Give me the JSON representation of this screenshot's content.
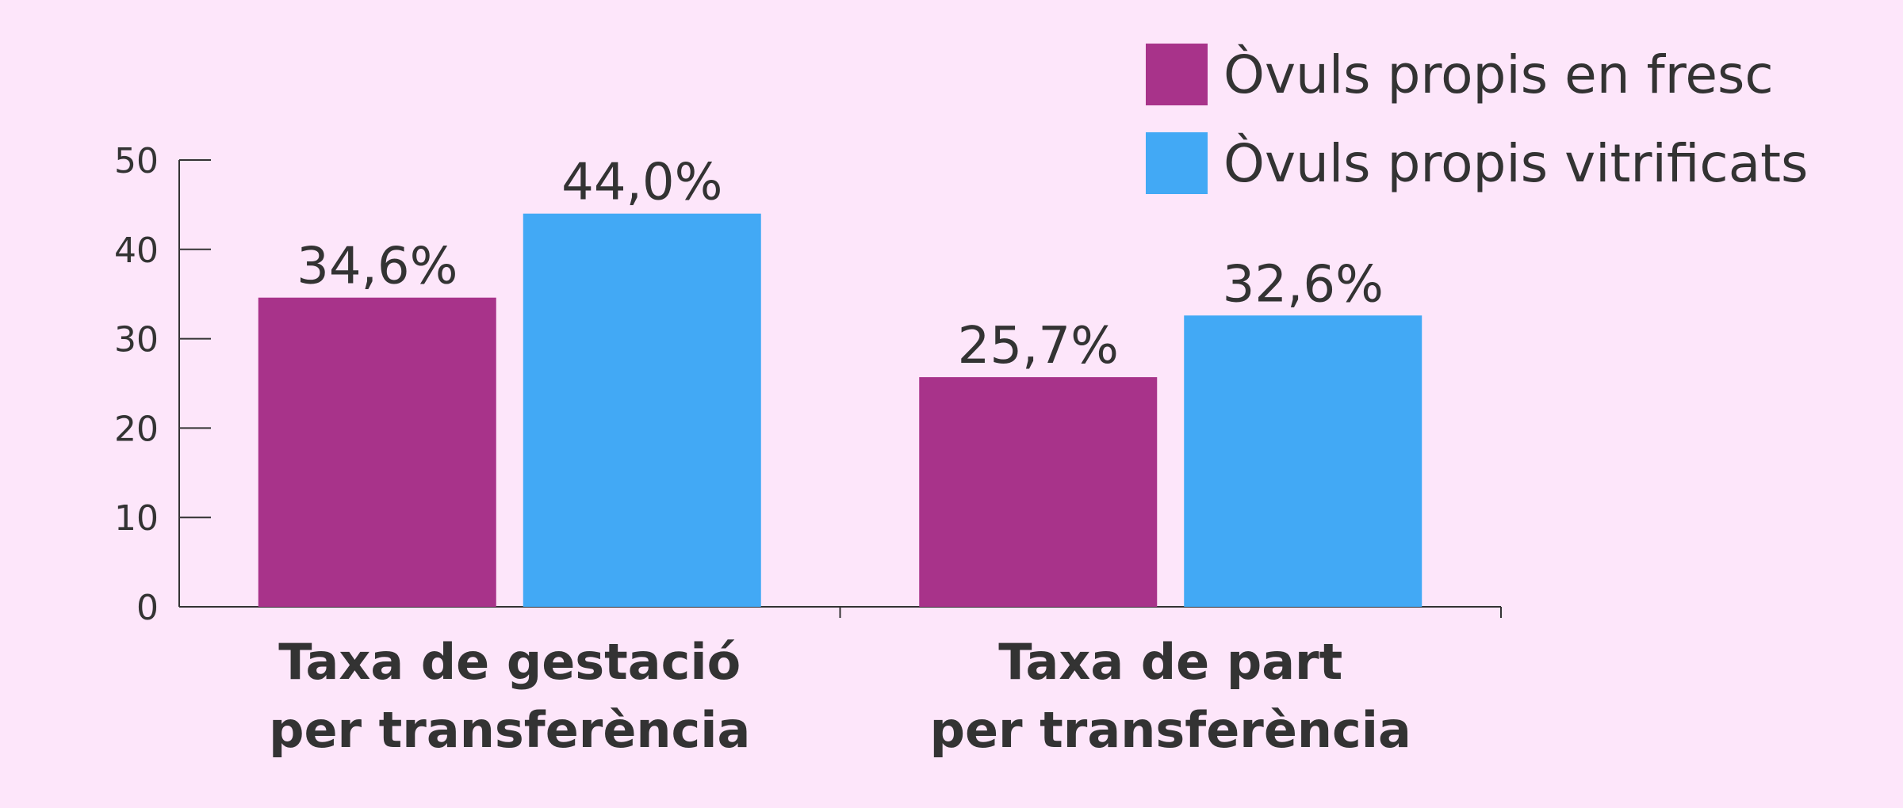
{
  "colors": {
    "background": "#fde6fa",
    "axis": "#333333",
    "text": "#333333"
  },
  "chart_data": {
    "type": "bar",
    "title": "",
    "xlabel": "",
    "ylabel": "",
    "ylim": [
      0,
      50
    ],
    "yticks": [
      0,
      10,
      20,
      30,
      40,
      50
    ],
    "grid": false,
    "legend_position": "top-right",
    "categories": [
      {
        "line1": "Taxa de gestació",
        "line2": "per transferència"
      },
      {
        "line1": "Taxa de part",
        "line2": "per transferència"
      }
    ],
    "series": [
      {
        "name": "Òvuls propis en fresc",
        "color": "#a8338a",
        "values": [
          34.6,
          25.7
        ],
        "labels": [
          "34,6%",
          "25,7%"
        ]
      },
      {
        "name": "Òvuls propis vitrificats",
        "color": "#42a9f5",
        "values": [
          44.0,
          32.6
        ],
        "labels": [
          "44,0%",
          "32,6%"
        ]
      }
    ]
  }
}
